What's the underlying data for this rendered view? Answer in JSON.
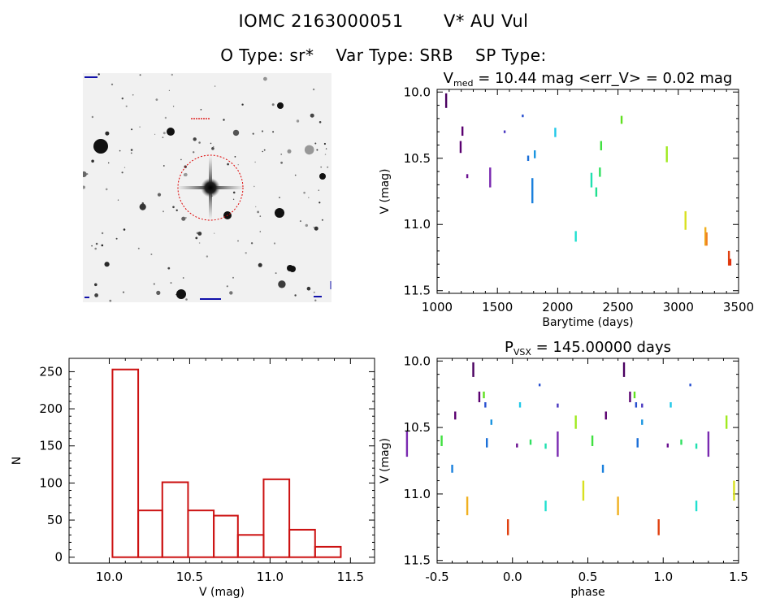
{
  "header": {
    "star_id": "IOMC 2163000051",
    "star_name": "V* AU Vul",
    "otype_label": "O Type: sr*",
    "vartype_label": "Var Type: SRB",
    "sptype_label": "SP Type:"
  },
  "image_panel": {
    "colors": {
      "circle": "#dd0000",
      "marker": "#dd0000",
      "text": "#1111aa"
    }
  },
  "chart_data": [
    {
      "type": "scatter",
      "panel": "light-curve",
      "title_prefix": "V",
      "title_sub": "med",
      "title_rest": "= 10.44 mag <err_V> = 0.02 mag",
      "xlabel": "Barytime (days)",
      "ylabel": "V (mag)",
      "xlim": [
        1000,
        3500
      ],
      "ylim": [
        11.52,
        9.98
      ],
      "y_inverted": true,
      "x_ticks": [
        1000,
        1500,
        2000,
        2500,
        3000,
        3500
      ],
      "x_tick_labels": [
        "1000",
        "1500",
        "2000",
        "2500",
        "3000",
        "3500"
      ],
      "y_ticks": [
        10.0,
        10.5,
        11.0,
        11.5
      ],
      "y_tick_labels": [
        "10.0",
        "10.5",
        "11.0",
        "11.5"
      ],
      "points": [
        {
          "x": 1075,
          "y0": 10.01,
          "y1": 10.12,
          "c": "#4a0060"
        },
        {
          "x": 1195,
          "y0": 10.37,
          "y1": 10.46,
          "c": "#5a0070"
        },
        {
          "x": 1210,
          "y0": 10.26,
          "y1": 10.33,
          "c": "#5a0070"
        },
        {
          "x": 1250,
          "y0": 10.62,
          "y1": 10.65,
          "c": "#6a1090"
        },
        {
          "x": 1440,
          "y0": 10.57,
          "y1": 10.72,
          "c": "#7a2ab0"
        },
        {
          "x": 1560,
          "y0": 10.29,
          "y1": 10.31,
          "c": "#4a38c0"
        },
        {
          "x": 1710,
          "y0": 10.17,
          "y1": 10.19,
          "c": "#2850d0"
        },
        {
          "x": 1755,
          "y0": 10.48,
          "y1": 10.52,
          "c": "#1a6fd8"
        },
        {
          "x": 1790,
          "y0": 10.65,
          "y1": 10.84,
          "c": "#1a80dd"
        },
        {
          "x": 1810,
          "y0": 10.44,
          "y1": 10.5,
          "c": "#1a95e0"
        },
        {
          "x": 1980,
          "y0": 10.27,
          "y1": 10.34,
          "c": "#20c8e8"
        },
        {
          "x": 2150,
          "y0": 11.05,
          "y1": 11.13,
          "c": "#20e0d0"
        },
        {
          "x": 2280,
          "y0": 10.61,
          "y1": 10.72,
          "c": "#20e0b0"
        },
        {
          "x": 2320,
          "y0": 10.72,
          "y1": 10.79,
          "c": "#20e090"
        },
        {
          "x": 2350,
          "y0": 10.57,
          "y1": 10.64,
          "c": "#30e060"
        },
        {
          "x": 2360,
          "y0": 10.37,
          "y1": 10.44,
          "c": "#40e040"
        },
        {
          "x": 2530,
          "y0": 10.18,
          "y1": 10.24,
          "c": "#60e020"
        },
        {
          "x": 2905,
          "y0": 10.41,
          "y1": 10.53,
          "c": "#a0ea20"
        },
        {
          "x": 3060,
          "y0": 10.9,
          "y1": 11.04,
          "c": "#d8e020"
        },
        {
          "x": 3225,
          "y0": 11.02,
          "y1": 11.16,
          "c": "#f0b020"
        },
        {
          "x": 3235,
          "y0": 11.06,
          "y1": 11.16,
          "c": "#f08020"
        },
        {
          "x": 3420,
          "y0": 11.2,
          "y1": 11.31,
          "c": "#e04010"
        },
        {
          "x": 3432,
          "y0": 11.26,
          "y1": 11.31,
          "c": "#e03010"
        }
      ]
    },
    {
      "type": "bar",
      "panel": "histogram",
      "xlabel": "V (mag)",
      "ylabel": "N",
      "xlim": [
        9.75,
        11.65
      ],
      "ylim": [
        -8,
        268
      ],
      "x_ticks": [
        10.0,
        10.5,
        11.0,
        11.5
      ],
      "x_tick_labels": [
        "10.0",
        "10.5",
        "11.0",
        "11.5"
      ],
      "y_ticks": [
        0,
        50,
        100,
        150,
        200,
        250
      ],
      "y_tick_labels": [
        "0",
        "50",
        "100",
        "150",
        "200",
        "250"
      ],
      "bin_edges": [
        10.02,
        10.18,
        10.33,
        10.49,
        10.65,
        10.8,
        10.96,
        11.12,
        11.28,
        11.44
      ],
      "counts": [
        253,
        63,
        101,
        63,
        56,
        30,
        105,
        37,
        14
      ],
      "bar_color": "#cc1111"
    },
    {
      "type": "scatter",
      "panel": "phase-curve",
      "title_prefix": "P",
      "title_sub": "VSX",
      "title_rest": "= 145.00000 days",
      "xlabel": "phase",
      "ylabel": "V (mag)",
      "xlim": [
        -0.5,
        1.5
      ],
      "ylim": [
        11.52,
        9.98
      ],
      "y_inverted": true,
      "x_ticks": [
        -0.5,
        0.0,
        0.5,
        1.0,
        1.5
      ],
      "x_tick_labels": [
        "-0.5",
        "0.0",
        "0.5",
        "1.0",
        "1.5"
      ],
      "y_ticks": [
        10.0,
        10.5,
        11.0,
        11.5
      ],
      "y_tick_labels": [
        "10.0",
        "10.5",
        "11.0",
        "11.5"
      ],
      "points": [
        {
          "x": -0.26,
          "y0": 10.01,
          "y1": 10.12,
          "c": "#4a0060"
        },
        {
          "x": 0.74,
          "y0": 10.01,
          "y1": 10.12,
          "c": "#4a0060"
        },
        {
          "x": -0.22,
          "y0": 10.23,
          "y1": 10.31,
          "c": "#5a0070"
        },
        {
          "x": 0.78,
          "y0": 10.23,
          "y1": 10.31,
          "c": "#5a0070"
        },
        {
          "x": -0.38,
          "y0": 10.38,
          "y1": 10.44,
          "c": "#5a0070"
        },
        {
          "x": 0.62,
          "y0": 10.38,
          "y1": 10.44,
          "c": "#5a0070"
        },
        {
          "x": 0.3,
          "y0": 10.53,
          "y1": 10.72,
          "c": "#7a2ab0"
        },
        {
          "x": -0.7,
          "y0": 10.53,
          "y1": 10.72,
          "c": "#7a2ab0"
        },
        {
          "x": 1.3,
          "y0": 10.53,
          "y1": 10.72,
          "c": "#7a2ab0"
        },
        {
          "x": 0.03,
          "y0": 10.62,
          "y1": 10.65,
          "c": "#6a1090"
        },
        {
          "x": 1.03,
          "y0": 10.62,
          "y1": 10.65,
          "c": "#6a1090"
        },
        {
          "x": 0.3,
          "y0": 10.32,
          "y1": 10.35,
          "c": "#4a38c0"
        },
        {
          "x": 0.86,
          "y0": 10.32,
          "y1": 10.35,
          "c": "#4a38c0"
        },
        {
          "x": -0.18,
          "y0": 10.31,
          "y1": 10.35,
          "c": "#2850d0"
        },
        {
          "x": 0.82,
          "y0": 10.31,
          "y1": 10.35,
          "c": "#2850d0"
        },
        {
          "x": 0.18,
          "y0": 10.17,
          "y1": 10.19,
          "c": "#2850d0"
        },
        {
          "x": 1.18,
          "y0": 10.17,
          "y1": 10.19,
          "c": "#2850d0"
        },
        {
          "x": -0.17,
          "y0": 10.58,
          "y1": 10.65,
          "c": "#1a6fd8"
        },
        {
          "x": 0.83,
          "y0": 10.58,
          "y1": 10.65,
          "c": "#1a6fd8"
        },
        {
          "x": -0.4,
          "y0": 10.78,
          "y1": 10.84,
          "c": "#1a80dd"
        },
        {
          "x": 0.6,
          "y0": 10.78,
          "y1": 10.84,
          "c": "#1a80dd"
        },
        {
          "x": -0.14,
          "y0": 10.44,
          "y1": 10.48,
          "c": "#1a95e0"
        },
        {
          "x": 0.86,
          "y0": 10.44,
          "y1": 10.48,
          "c": "#1a95e0"
        },
        {
          "x": 0.05,
          "y0": 10.31,
          "y1": 10.35,
          "c": "#20c8e8"
        },
        {
          "x": 1.05,
          "y0": 10.31,
          "y1": 10.35,
          "c": "#20c8e8"
        },
        {
          "x": 0.22,
          "y0": 11.05,
          "y1": 11.13,
          "c": "#20e0d0"
        },
        {
          "x": 1.22,
          "y0": 11.05,
          "y1": 11.13,
          "c": "#20e0d0"
        },
        {
          "x": 0.22,
          "y0": 10.62,
          "y1": 10.66,
          "c": "#20e0b0"
        },
        {
          "x": 1.22,
          "y0": 10.62,
          "y1": 10.66,
          "c": "#20e0b0"
        },
        {
          "x": 0.12,
          "y0": 10.59,
          "y1": 10.63,
          "c": "#30e060"
        },
        {
          "x": 1.12,
          "y0": 10.59,
          "y1": 10.63,
          "c": "#30e060"
        },
        {
          "x": 0.53,
          "y0": 10.56,
          "y1": 10.64,
          "c": "#40e040"
        },
        {
          "x": -0.47,
          "y0": 10.56,
          "y1": 10.64,
          "c": "#40e040"
        },
        {
          "x": -0.19,
          "y0": 10.23,
          "y1": 10.28,
          "c": "#60e020"
        },
        {
          "x": 0.81,
          "y0": 10.23,
          "y1": 10.28,
          "c": "#60e020"
        },
        {
          "x": 0.42,
          "y0": 10.41,
          "y1": 10.51,
          "c": "#a0ea20"
        },
        {
          "x": 1.42,
          "y0": 10.41,
          "y1": 10.51,
          "c": "#a0ea20"
        },
        {
          "x": 0.47,
          "y0": 10.9,
          "y1": 11.05,
          "c": "#d8e020"
        },
        {
          "x": 1.47,
          "y0": 10.9,
          "y1": 11.05,
          "c": "#d8e020"
        },
        {
          "x": -0.3,
          "y0": 11.02,
          "y1": 11.16,
          "c": "#f0b020"
        },
        {
          "x": 0.7,
          "y0": 11.02,
          "y1": 11.16,
          "c": "#f0b020"
        },
        {
          "x": -0.03,
          "y0": 11.19,
          "y1": 11.31,
          "c": "#e04010"
        },
        {
          "x": 0.97,
          "y0": 11.19,
          "y1": 11.31,
          "c": "#e04010"
        }
      ]
    }
  ]
}
